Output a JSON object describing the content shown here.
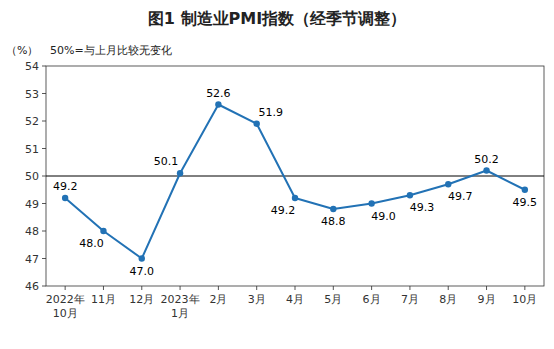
{
  "chart_data": {
    "type": "line",
    "title": "图1  制造业PMI指数（经季节调整）",
    "ylabel": "（%）",
    "annotations": [
      "50%=与上月比较无变化"
    ],
    "categories": [
      "2022年\n10月",
      "11月",
      "12月",
      "2023年\n1月",
      "2月",
      "3月",
      "4月",
      "5月",
      "6月",
      "7月",
      "8月",
      "9月",
      "10月"
    ],
    "values": [
      49.2,
      48.0,
      47.0,
      50.1,
      52.6,
      51.9,
      49.2,
      48.8,
      49.0,
      49.3,
      49.7,
      50.2,
      49.5
    ],
    "value_labels": [
      "49.2",
      "48.0",
      "47.0",
      "50.1",
      "52.6",
      "51.9",
      "49.2",
      "48.8",
      "49.0",
      "49.3",
      "49.7",
      "50.2",
      "49.5"
    ],
    "baseline": 50.0,
    "color": "#2272B5",
    "marker": "circle",
    "ylim": [
      46,
      54
    ],
    "yticks": [
      46,
      47,
      48,
      49,
      50,
      51,
      52,
      53,
      54
    ],
    "grid": false,
    "data_labels": true
  }
}
